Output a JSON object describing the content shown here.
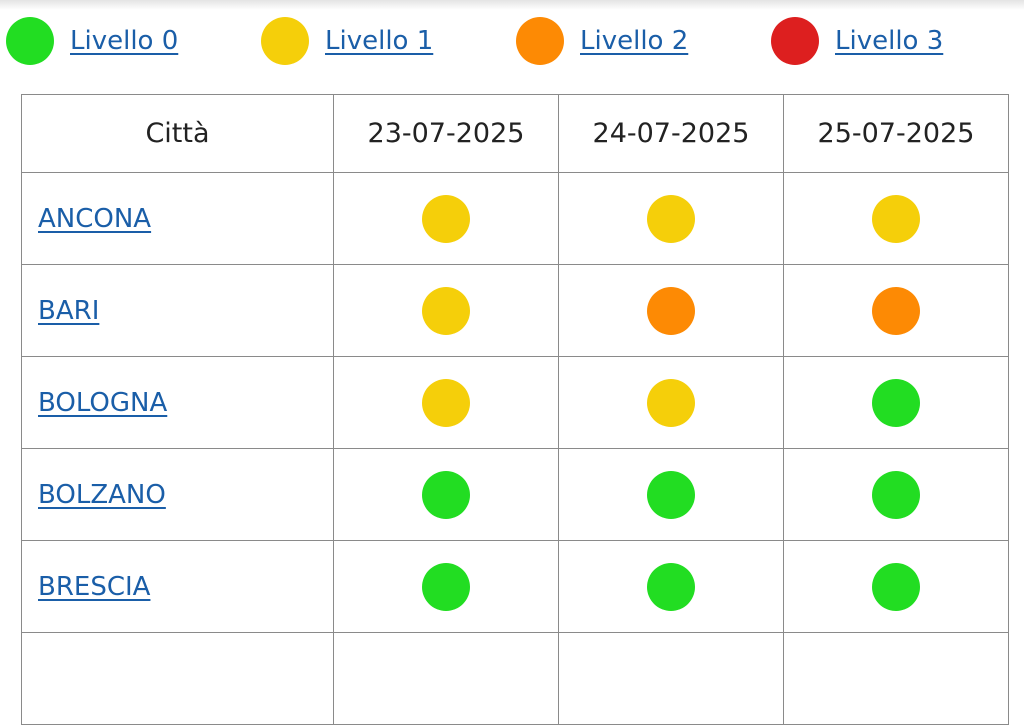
{
  "legend": [
    {
      "label": "Livello 0",
      "color": "#22dd22"
    },
    {
      "label": "Livello 1",
      "color": "#f5cf0a"
    },
    {
      "label": "Livello 2",
      "color": "#fd8a04"
    },
    {
      "label": "Livello 3",
      "color": "#dd1f1f"
    }
  ],
  "table": {
    "headers": [
      "Città",
      "23-07-2025",
      "24-07-2025",
      "25-07-2025"
    ],
    "rows": [
      {
        "city": "ANCONA",
        "levels": [
          1,
          1,
          1
        ]
      },
      {
        "city": "BARI",
        "levels": [
          1,
          2,
          2
        ]
      },
      {
        "city": "BOLOGNA",
        "levels": [
          1,
          1,
          0
        ]
      },
      {
        "city": "BOLZANO",
        "levels": [
          0,
          0,
          0
        ]
      },
      {
        "city": "BRESCIA",
        "levels": [
          0,
          0,
          0
        ]
      },
      {
        "city": "",
        "levels": []
      }
    ]
  }
}
